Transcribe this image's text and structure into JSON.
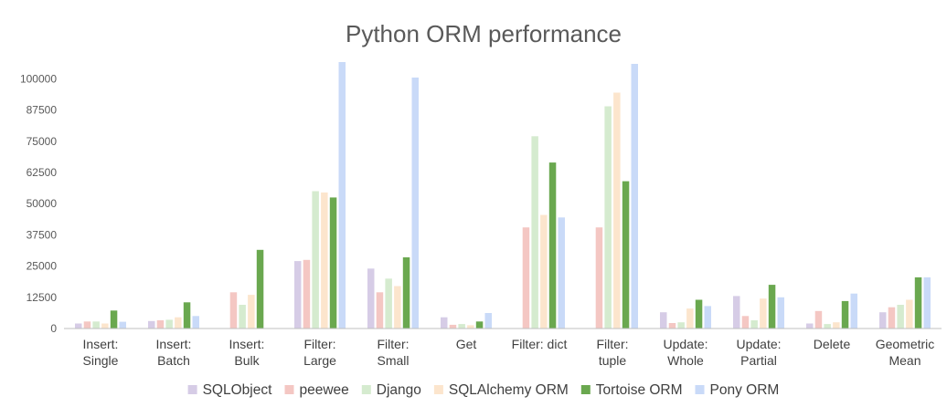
{
  "chart_data": {
    "type": "bar",
    "title": "Python ORM performance",
    "xlabel": "",
    "ylabel": "",
    "ylim": [
      0,
      106000
    ],
    "yticks": [
      0,
      12500,
      25000,
      37500,
      50000,
      62500,
      75000,
      87500,
      100000
    ],
    "ytick_labels": [
      "0",
      "12500",
      "25000",
      "37500",
      "50000",
      "62500",
      "75000",
      "87500",
      "100000"
    ],
    "categories": [
      [
        "Insert:",
        "Single"
      ],
      [
        "Insert:",
        "Batch"
      ],
      [
        "Insert:",
        "Bulk"
      ],
      [
        "Filter:",
        "Large"
      ],
      [
        "Filter:",
        "Small"
      ],
      [
        "Get"
      ],
      [
        "Filter: dict"
      ],
      [
        "Filter:",
        "tuple"
      ],
      [
        "Update:",
        "Whole"
      ],
      [
        "Update:",
        "Partial"
      ],
      [
        "Delete"
      ],
      [
        "Geometric",
        "Mean"
      ]
    ],
    "legend_position": "bottom",
    "grid": false,
    "series": [
      {
        "name": "SQLObject",
        "color": "#D6CCE6",
        "values": [
          2000,
          3000,
          0,
          27000,
          24000,
          4500,
          0,
          0,
          6500,
          13000,
          2000,
          6500
        ]
      },
      {
        "name": "peewee",
        "color": "#F4C7C3",
        "values": [
          2800,
          3300,
          14500,
          27500,
          14500,
          1500,
          40500,
          40500,
          2200,
          5000,
          7000,
          8500
        ]
      },
      {
        "name": "Django",
        "color": "#D5EBCF",
        "values": [
          2800,
          3500,
          9500,
          55000,
          20000,
          1800,
          77000,
          89000,
          2500,
          3300,
          1800,
          9500
        ]
      },
      {
        "name": "SQLAlchemy ORM",
        "color": "#FCE5CD",
        "values": [
          2000,
          4500,
          13500,
          54500,
          17000,
          1300,
          45500,
          94500,
          8000,
          12000,
          2500,
          11500
        ]
      },
      {
        "name": "Tortoise ORM",
        "color": "#6AA84F",
        "values": [
          7200,
          10500,
          31500,
          52500,
          28500,
          2800,
          66500,
          59000,
          11500,
          17500,
          11000,
          20500
        ]
      },
      {
        "name": "Pony ORM",
        "color": "#C9DAF8",
        "values": [
          2700,
          5000,
          0,
          107000,
          100500,
          6200,
          44500,
          106000,
          9000,
          12500,
          14000,
          20500
        ]
      }
    ]
  }
}
